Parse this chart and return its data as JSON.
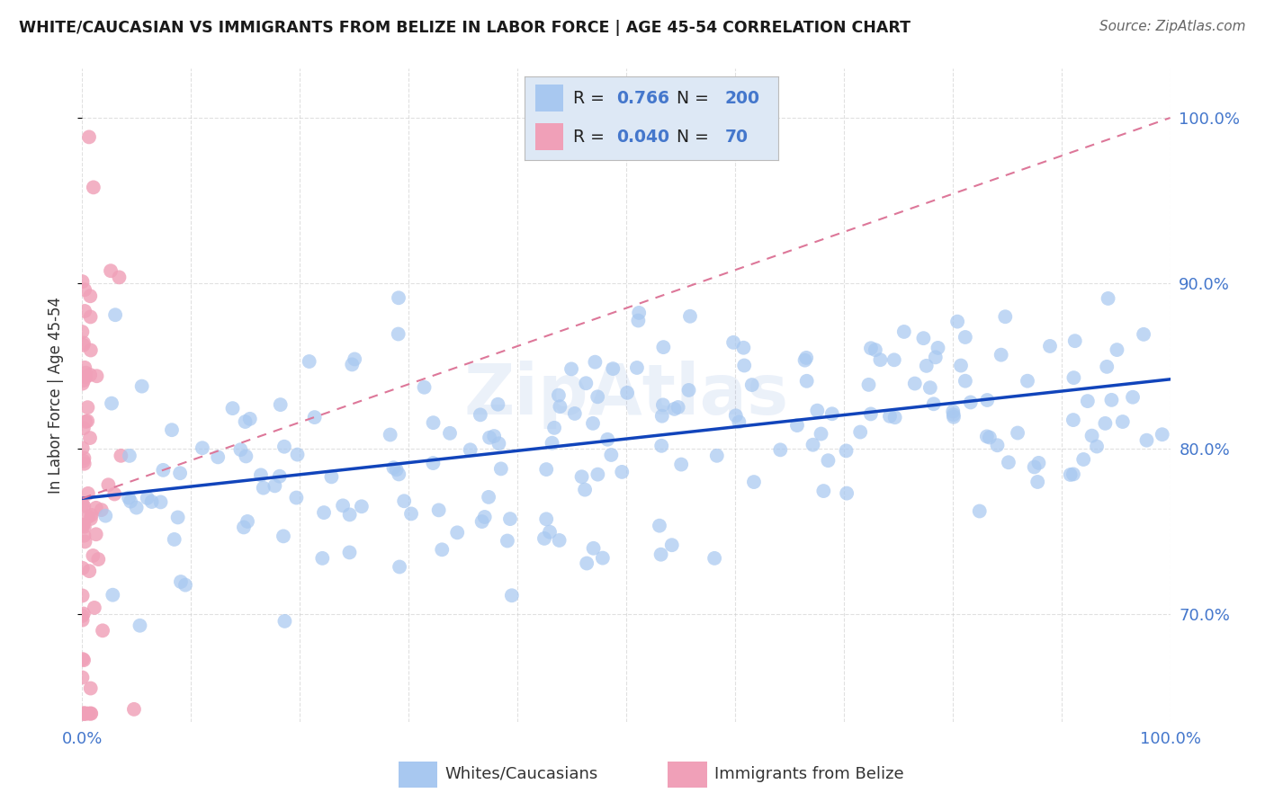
{
  "title": "WHITE/CAUCASIAN VS IMMIGRANTS FROM BELIZE IN LABOR FORCE | AGE 45-54 CORRELATION CHART",
  "source": "Source: ZipAtlas.com",
  "ylabel": "In Labor Force | Age 45-54",
  "watermark": "ZipAtlas",
  "blue_R": 0.766,
  "blue_N": 200,
  "pink_R": 0.04,
  "pink_N": 70,
  "blue_color": "#a8c8f0",
  "pink_color": "#f0a0b8",
  "blue_line_color": "#1144bb",
  "pink_line_color": "#dd7799",
  "axis_label_color": "#4477cc",
  "right_yticks": [
    0.7,
    0.8,
    0.9,
    1.0
  ],
  "right_ytick_labels": [
    "70.0%",
    "80.0%",
    "90.0%",
    "100.0%"
  ],
  "xlim": [
    0.0,
    1.0
  ],
  "ylim": [
    0.635,
    1.03
  ],
  "blue_slope": 0.072,
  "blue_intercept": 0.77,
  "pink_slope": 0.23,
  "pink_intercept": 0.77,
  "legend_box_color": "#dde8f5",
  "grid_color": "#cccccc",
  "background_color": "#ffffff",
  "title_fontsize": 12.5,
  "source_fontsize": 11,
  "tick_fontsize": 13
}
